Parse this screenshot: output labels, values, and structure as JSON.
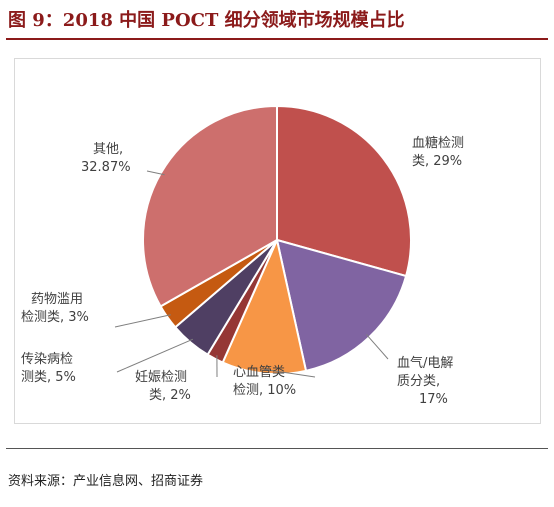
{
  "figure_title": "图 9：2018 中国 POCT 细分领域市场规模占比",
  "source": "资料来源：产业信息网、招商证券",
  "chart_data": {
    "type": "pie",
    "title": "",
    "slices": [
      {
        "label_line1": "血糖检测",
        "label_line2": "类, 29%",
        "value": 29,
        "color": "#C0504D"
      },
      {
        "label_line1": "血气/电解",
        "label_line2": "质分类,",
        "label_line3": "17%",
        "value": 17,
        "color": "#8064A2"
      },
      {
        "label_line1": "心血管类",
        "label_line2": "检测, 10%",
        "value": 10,
        "color": "#F79646"
      },
      {
        "label_line1": "妊娠检测",
        "label_line2": "类, 2%",
        "value": 2,
        "color": "#953735"
      },
      {
        "label_line1": "传染病检",
        "label_line2": "测类, 5%",
        "value": 5,
        "color": "#4F3F63"
      },
      {
        "label_line1": "药物滥用",
        "label_line2": "检测类, 3%",
        "value": 3,
        "color": "#C55A11"
      },
      {
        "label_line1": "其他,",
        "label_line2": "32.87%",
        "value": 32.87,
        "color": "#CD6F6D"
      }
    ]
  }
}
